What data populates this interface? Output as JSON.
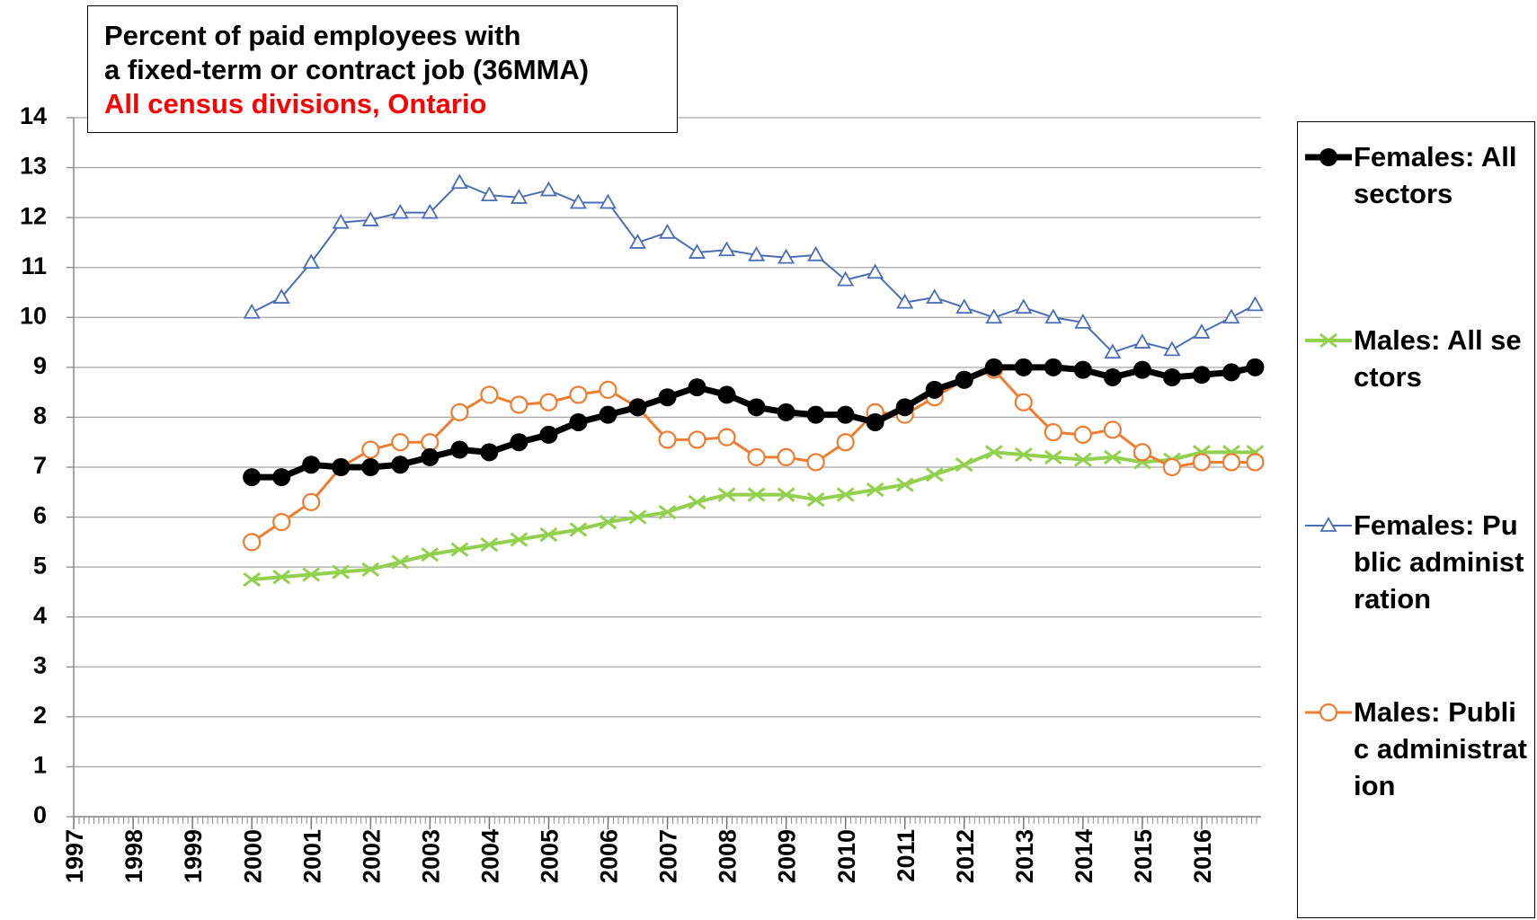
{
  "chart_data": {
    "type": "line",
    "title": [
      "Percent of paid employees with",
      "a fixed-term or contract job (36MMA)"
    ],
    "subtitle": "All census divisions, Ontario",
    "x": [
      2000,
      2000.5,
      2001,
      2001.5,
      2002,
      2002.5,
      2003,
      2003.5,
      2004,
      2004.5,
      2005,
      2005.5,
      2006,
      2006.5,
      2007,
      2007.5,
      2008,
      2008.5,
      2009,
      2009.5,
      2010,
      2010.5,
      2011,
      2011.5,
      2012,
      2012.5,
      2013,
      2013.5,
      2014,
      2014.5,
      2015,
      2015.5,
      2016,
      2016.5,
      2016.9
    ],
    "series": [
      {
        "name": "Females: All sectors",
        "color": "#000000",
        "marker": "filled-circle",
        "values": [
          6.8,
          6.8,
          7.05,
          7.0,
          7.0,
          7.05,
          7.2,
          7.35,
          7.3,
          7.5,
          7.65,
          7.9,
          8.05,
          8.2,
          8.4,
          8.6,
          8.45,
          8.2,
          8.1,
          8.05,
          8.05,
          7.9,
          8.2,
          8.55,
          8.75,
          9.0,
          9.0,
          9.0,
          8.95,
          8.8,
          8.95,
          8.8,
          8.85,
          8.9,
          9.0
        ]
      },
      {
        "name": "Males: All sectors",
        "color": "#92d050",
        "marker": "x",
        "values": [
          4.75,
          4.8,
          4.85,
          4.9,
          4.95,
          5.1,
          5.25,
          5.35,
          5.45,
          5.55,
          5.65,
          5.75,
          5.9,
          6.0,
          6.1,
          6.3,
          6.45,
          6.45,
          6.45,
          6.35,
          6.45,
          6.55,
          6.65,
          6.85,
          7.05,
          7.3,
          7.25,
          7.2,
          7.15,
          7.2,
          7.1,
          7.15,
          7.3,
          7.3,
          7.3
        ]
      },
      {
        "name": "Females: Public administration",
        "color": "#4a6db5",
        "marker": "open-triangle",
        "values": [
          10.1,
          10.4,
          11.1,
          11.9,
          11.95,
          12.1,
          12.1,
          12.7,
          12.45,
          12.4,
          12.55,
          12.3,
          12.3,
          11.5,
          11.7,
          11.3,
          11.35,
          11.25,
          11.2,
          11.25,
          10.75,
          10.9,
          10.3,
          10.4,
          10.2,
          10.0,
          10.2,
          10.0,
          9.9,
          9.3,
          9.5,
          9.35,
          9.7,
          10.0,
          10.25
        ]
      },
      {
        "name": "Males: Public administration",
        "color": "#ed7d31",
        "marker": "open-circle",
        "values": [
          5.5,
          5.9,
          6.3,
          7.0,
          7.35,
          7.5,
          7.5,
          8.1,
          8.45,
          8.25,
          8.3,
          8.45,
          8.55,
          8.2,
          7.55,
          7.55,
          7.6,
          7.2,
          7.2,
          7.1,
          7.5,
          8.1,
          8.05,
          8.4,
          8.75,
          8.95,
          8.3,
          7.7,
          7.65,
          7.75,
          7.3,
          7.0,
          7.1,
          7.1,
          7.1
        ]
      }
    ],
    "xlim": [
      1997,
      2017
    ],
    "xticks": [
      1997,
      1998,
      1999,
      2000,
      2001,
      2002,
      2003,
      2004,
      2005,
      2006,
      2007,
      2008,
      2009,
      2010,
      2011,
      2012,
      2013,
      2014,
      2015,
      2016
    ],
    "ylim": [
      0,
      14
    ],
    "yticks": [
      0,
      1,
      2,
      3,
      4,
      5,
      6,
      7,
      8,
      9,
      10,
      11,
      12,
      13,
      14
    ],
    "grid": true,
    "legend": "right"
  }
}
